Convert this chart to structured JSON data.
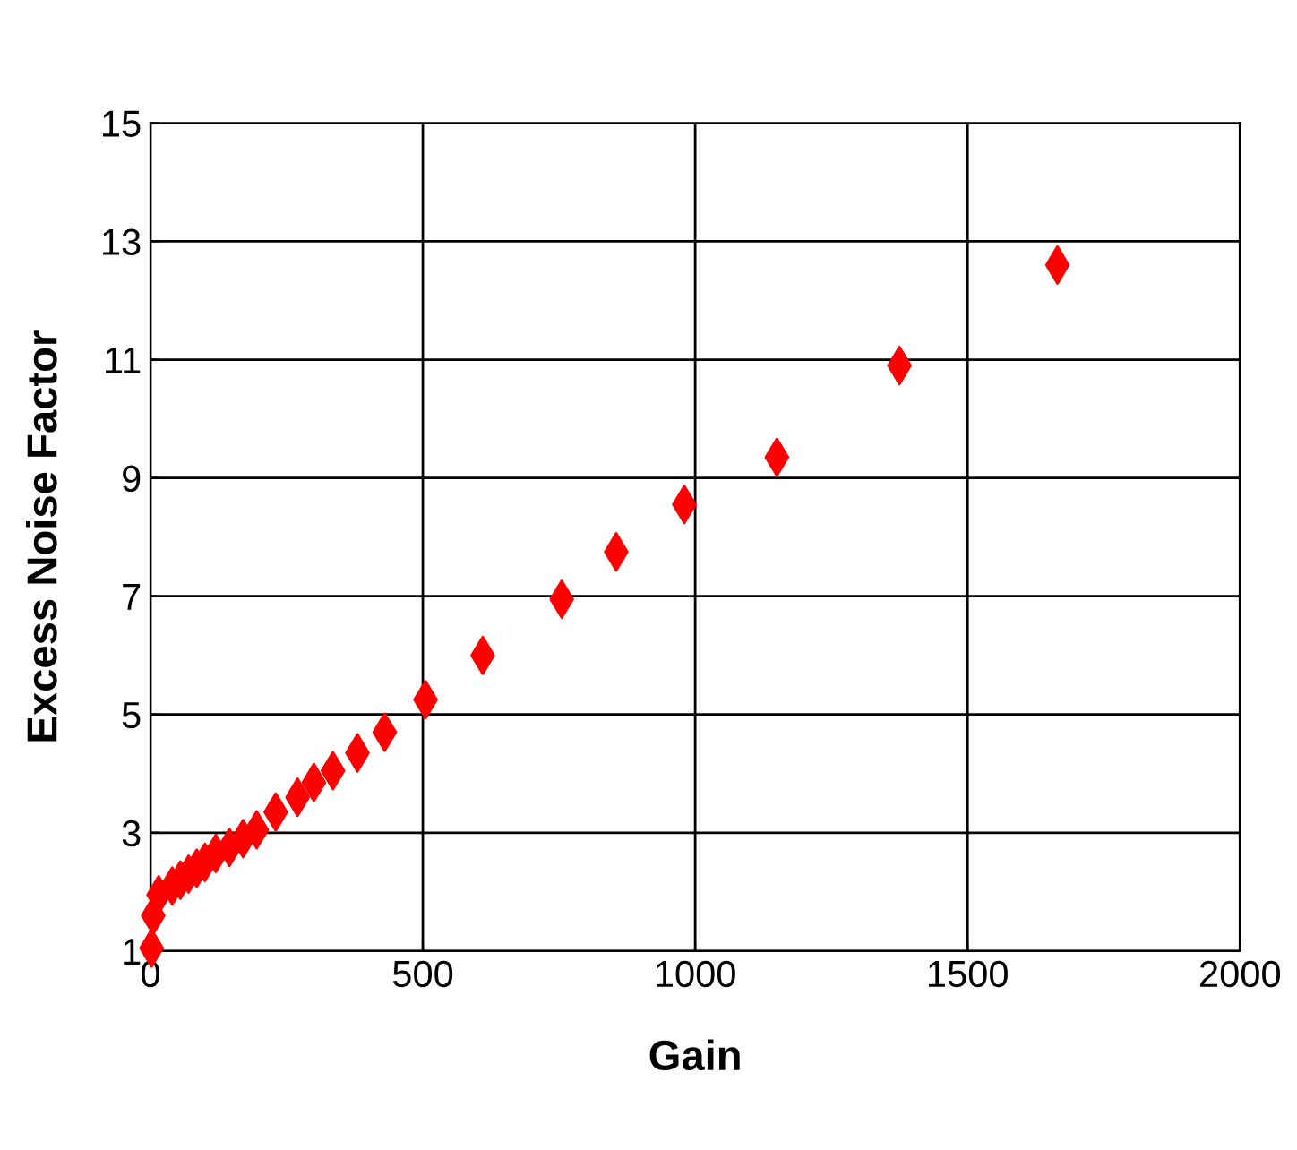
{
  "chart_data": {
    "type": "scatter",
    "xlabel": "Gain",
    "ylabel": "Excess Noise Factor",
    "x": [
      2,
      5,
      15,
      40,
      55,
      70,
      85,
      100,
      120,
      145,
      170,
      195,
      230,
      270,
      300,
      335,
      380,
      430,
      505,
      610,
      755,
      855,
      980,
      1150,
      1375,
      1665
    ],
    "series": [
      {
        "color": "#ff0000",
        "values": [
          1.05,
          1.6,
          1.95,
          2.1,
          2.2,
          2.3,
          2.4,
          2.5,
          2.65,
          2.75,
          2.9,
          3.05,
          3.35,
          3.6,
          3.85,
          4.05,
          4.35,
          4.7,
          5.25,
          6.0,
          6.95,
          7.75,
          8.55,
          9.35,
          10.9,
          12.6
        ]
      }
    ],
    "marker": "diamond",
    "grid": true,
    "legend": false,
    "xlim": [
      0,
      2000
    ],
    "xticks": [
      0,
      500,
      1000,
      1500,
      2000
    ],
    "ylim": [
      1,
      15
    ],
    "yticks": [
      1,
      3,
      5,
      7,
      9,
      11,
      13,
      15
    ]
  }
}
